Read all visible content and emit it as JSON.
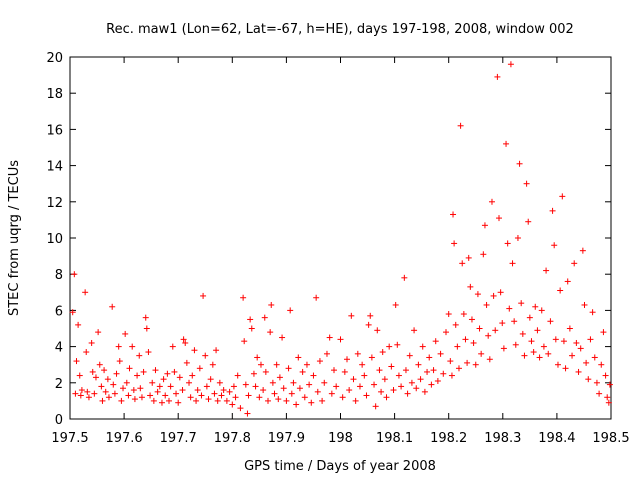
{
  "chart_data": {
    "type": "scatter",
    "title": "Rec. maw1 (Lon=62, Lat=-67, h=HE), days 197-198, 2008, window 002",
    "xlabel": "GPS time / Days of year 2008",
    "ylabel": "STEC from uqrg / TECUs",
    "xlim": [
      197.5,
      198.5
    ],
    "ylim": [
      0,
      20
    ],
    "xticks": [
      197.5,
      197.6,
      197.7,
      197.8,
      197.9,
      198.0,
      198.1,
      198.2,
      198.3,
      198.4,
      198.5
    ],
    "xtick_labels": [
      "197.5",
      "197.6",
      "197.7",
      "197.8",
      "197.9",
      "198",
      "198.1",
      "198.2",
      "198.3",
      "198.4",
      "198.5"
    ],
    "yticks": [
      0,
      2,
      4,
      6,
      8,
      10,
      12,
      14,
      16,
      18,
      20
    ],
    "ytick_labels": [
      "0",
      "2",
      "4",
      "6",
      "8",
      "10",
      "12",
      "14",
      "16",
      "18",
      "20"
    ],
    "grid": false,
    "marker": "+",
    "color": "#ff0000",
    "series": [
      {
        "name": "STEC",
        "points": [
          [
            197.505,
            5.9
          ],
          [
            197.508,
            8.0
          ],
          [
            197.51,
            1.4
          ],
          [
            197.512,
            3.2
          ],
          [
            197.515,
            5.2
          ],
          [
            197.518,
            2.4
          ],
          [
            197.52,
            1.3
          ],
          [
            197.522,
            1.6
          ],
          [
            197.528,
            7.0
          ],
          [
            197.53,
            3.7
          ],
          [
            197.532,
            1.5
          ],
          [
            197.535,
            1.2
          ],
          [
            197.54,
            4.2
          ],
          [
            197.542,
            2.6
          ],
          [
            197.545,
            1.4
          ],
          [
            197.548,
            2.3
          ],
          [
            197.552,
            4.8
          ],
          [
            197.555,
            3.0
          ],
          [
            197.558,
            1.8
          ],
          [
            197.56,
            1.0
          ],
          [
            197.563,
            2.7
          ],
          [
            197.566,
            1.5
          ],
          [
            197.57,
            2.2
          ],
          [
            197.572,
            1.2
          ],
          [
            197.578,
            6.2
          ],
          [
            197.58,
            1.9
          ],
          [
            197.583,
            1.4
          ],
          [
            197.586,
            2.5
          ],
          [
            197.59,
            4.0
          ],
          [
            197.592,
            3.2
          ],
          [
            197.595,
            1.0
          ],
          [
            197.598,
            1.7
          ],
          [
            197.602,
            4.7
          ],
          [
            197.605,
            2.0
          ],
          [
            197.608,
            1.3
          ],
          [
            197.61,
            2.8
          ],
          [
            197.615,
            4.0
          ],
          [
            197.618,
            1.6
          ],
          [
            197.62,
            1.1
          ],
          [
            197.624,
            2.4
          ],
          [
            197.628,
            3.5
          ],
          [
            197.63,
            1.7
          ],
          [
            197.633,
            1.2
          ],
          [
            197.636,
            2.6
          ],
          [
            197.64,
            5.6
          ],
          [
            197.642,
            5.0
          ],
          [
            197.645,
            3.7
          ],
          [
            197.648,
            1.3
          ],
          [
            197.652,
            2.0
          ],
          [
            197.655,
            1.0
          ],
          [
            197.658,
            2.7
          ],
          [
            197.662,
            1.5
          ],
          [
            197.666,
            1.8
          ],
          [
            197.67,
            0.9
          ],
          [
            197.673,
            2.2
          ],
          [
            197.676,
            1.3
          ],
          [
            197.68,
            2.5
          ],
          [
            197.683,
            1.0
          ],
          [
            197.686,
            1.8
          ],
          [
            197.69,
            4.0
          ],
          [
            197.693,
            2.6
          ],
          [
            197.696,
            1.4
          ],
          [
            197.7,
            0.9
          ],
          [
            197.703,
            2.3
          ],
          [
            197.708,
            1.6
          ],
          [
            197.71,
            4.4
          ],
          [
            197.713,
            4.2
          ],
          [
            197.716,
            3.1
          ],
          [
            197.72,
            2.0
          ],
          [
            197.723,
            1.2
          ],
          [
            197.726,
            2.4
          ],
          [
            197.73,
            3.8
          ],
          [
            197.733,
            1.0
          ],
          [
            197.736,
            1.6
          ],
          [
            197.74,
            2.8
          ],
          [
            197.743,
            1.3
          ],
          [
            197.746,
            6.8
          ],
          [
            197.75,
            3.5
          ],
          [
            197.753,
            1.8
          ],
          [
            197.756,
            1.1
          ],
          [
            197.76,
            2.2
          ],
          [
            197.764,
            3.0
          ],
          [
            197.767,
            1.4
          ],
          [
            197.77,
            3.8
          ],
          [
            197.773,
            1.0
          ],
          [
            197.777,
            2.0
          ],
          [
            197.78,
            1.3
          ],
          [
            197.784,
            1.6
          ],
          [
            197.79,
            1.0
          ],
          [
            197.795,
            1.5
          ],
          [
            197.8,
            0.8
          ],
          [
            197.803,
            1.8
          ],
          [
            197.806,
            1.2
          ],
          [
            197.81,
            2.4
          ],
          [
            197.815,
            0.6
          ],
          [
            197.82,
            6.7
          ],
          [
            197.822,
            4.3
          ],
          [
            197.825,
            1.9
          ],
          [
            197.828,
            0.3
          ],
          [
            197.83,
            1.3
          ],
          [
            197.833,
            5.5
          ],
          [
            197.836,
            5.0
          ],
          [
            197.84,
            2.5
          ],
          [
            197.843,
            1.8
          ],
          [
            197.846,
            3.4
          ],
          [
            197.85,
            1.2
          ],
          [
            197.853,
            3.0
          ],
          [
            197.857,
            1.6
          ],
          [
            197.86,
            5.6
          ],
          [
            197.862,
            2.6
          ],
          [
            197.866,
            1.0
          ],
          [
            197.87,
            4.8
          ],
          [
            197.872,
            6.3
          ],
          [
            197.875,
            2.0
          ],
          [
            197.878,
            1.4
          ],
          [
            197.882,
            3.0
          ],
          [
            197.885,
            1.1
          ],
          [
            197.888,
            2.3
          ],
          [
            197.892,
            4.5
          ],
          [
            197.895,
            1.7
          ],
          [
            197.9,
            1.0
          ],
          [
            197.904,
            2.8
          ],
          [
            197.907,
            6.0
          ],
          [
            197.91,
            1.4
          ],
          [
            197.913,
            2.0
          ],
          [
            197.918,
            0.8
          ],
          [
            197.922,
            3.4
          ],
          [
            197.925,
            1.7
          ],
          [
            197.93,
            2.6
          ],
          [
            197.934,
            1.2
          ],
          [
            197.938,
            3.0
          ],
          [
            197.942,
            1.9
          ],
          [
            197.946,
            0.9
          ],
          [
            197.95,
            2.4
          ],
          [
            197.955,
            6.7
          ],
          [
            197.958,
            1.5
          ],
          [
            197.962,
            3.2
          ],
          [
            197.966,
            1.0
          ],
          [
            197.97,
            2.0
          ],
          [
            197.975,
            3.6
          ],
          [
            197.98,
            4.5
          ],
          [
            197.984,
            1.4
          ],
          [
            197.988,
            2.7
          ],
          [
            197.992,
            1.8
          ],
          [
            198.0,
            4.4
          ],
          [
            198.004,
            1.2
          ],
          [
            198.008,
            2.6
          ],
          [
            198.012,
            3.3
          ],
          [
            198.016,
            1.6
          ],
          [
            198.02,
            5.7
          ],
          [
            198.024,
            2.2
          ],
          [
            198.028,
            1.0
          ],
          [
            198.032,
            3.6
          ],
          [
            198.036,
            1.8
          ],
          [
            198.04,
            3.0
          ],
          [
            198.044,
            2.4
          ],
          [
            198.048,
            1.3
          ],
          [
            198.052,
            5.2
          ],
          [
            198.055,
            5.7
          ],
          [
            198.058,
            3.4
          ],
          [
            198.062,
            1.9
          ],
          [
            198.065,
            0.7
          ],
          [
            198.068,
            4.9
          ],
          [
            198.072,
            2.7
          ],
          [
            198.075,
            1.5
          ],
          [
            198.078,
            3.7
          ],
          [
            198.082,
            2.2
          ],
          [
            198.085,
            1.2
          ],
          [
            198.09,
            4.0
          ],
          [
            198.094,
            2.9
          ],
          [
            198.098,
            1.6
          ],
          [
            198.102,
            6.3
          ],
          [
            198.105,
            4.1
          ],
          [
            198.108,
            2.4
          ],
          [
            198.112,
            1.8
          ],
          [
            198.118,
            7.8
          ],
          [
            198.121,
            2.7
          ],
          [
            198.124,
            1.4
          ],
          [
            198.128,
            3.5
          ],
          [
            198.132,
            2.0
          ],
          [
            198.136,
            4.9
          ],
          [
            198.14,
            1.7
          ],
          [
            198.144,
            3.0
          ],
          [
            198.148,
            2.2
          ],
          [
            198.152,
            4.0
          ],
          [
            198.156,
            1.5
          ],
          [
            198.16,
            2.6
          ],
          [
            198.164,
            3.4
          ],
          [
            198.168,
            1.9
          ],
          [
            198.172,
            2.7
          ],
          [
            198.176,
            4.3
          ],
          [
            198.18,
            2.1
          ],
          [
            198.185,
            3.6
          ],
          [
            198.19,
            2.5
          ],
          [
            198.195,
            4.8
          ],
          [
            198.2,
            5.8
          ],
          [
            198.203,
            3.2
          ],
          [
            198.206,
            2.4
          ],
          [
            198.208,
            11.3
          ],
          [
            198.21,
            9.7
          ],
          [
            198.213,
            5.2
          ],
          [
            198.216,
            4.0
          ],
          [
            198.219,
            2.8
          ],
          [
            198.222,
            16.2
          ],
          [
            198.225,
            8.6
          ],
          [
            198.228,
            5.8
          ],
          [
            198.231,
            4.4
          ],
          [
            198.234,
            3.1
          ],
          [
            198.237,
            8.9
          ],
          [
            198.24,
            7.3
          ],
          [
            198.243,
            5.5
          ],
          [
            198.246,
            4.2
          ],
          [
            198.25,
            3.0
          ],
          [
            198.254,
            6.9
          ],
          [
            198.257,
            5.0
          ],
          [
            198.26,
            3.6
          ],
          [
            198.264,
            9.1
          ],
          [
            198.267,
            10.7
          ],
          [
            198.27,
            6.3
          ],
          [
            198.273,
            4.6
          ],
          [
            198.276,
            3.3
          ],
          [
            198.28,
            12.0
          ],
          [
            198.283,
            6.8
          ],
          [
            198.286,
            4.9
          ],
          [
            198.29,
            18.9
          ],
          [
            198.293,
            11.1
          ],
          [
            198.296,
            7.0
          ],
          [
            198.299,
            5.3
          ],
          [
            198.302,
            3.9
          ],
          [
            198.306,
            15.2
          ],
          [
            198.309,
            9.7
          ],
          [
            198.312,
            6.1
          ],
          [
            198.315,
            19.6
          ],
          [
            198.318,
            8.6
          ],
          [
            198.321,
            5.4
          ],
          [
            198.324,
            4.1
          ],
          [
            198.328,
            10.0
          ],
          [
            198.331,
            14.1
          ],
          [
            198.334,
            6.4
          ],
          [
            198.337,
            4.7
          ],
          [
            198.34,
            3.5
          ],
          [
            198.344,
            13.0
          ],
          [
            198.347,
            10.9
          ],
          [
            198.35,
            5.6
          ],
          [
            198.353,
            4.3
          ],
          [
            198.357,
            3.7
          ],
          [
            198.36,
            6.2
          ],
          [
            198.364,
            4.9
          ],
          [
            198.368,
            3.4
          ],
          [
            198.372,
            6.0
          ],
          [
            198.376,
            4.0
          ],
          [
            198.38,
            8.2
          ],
          [
            198.384,
            3.6
          ],
          [
            198.388,
            5.4
          ],
          [
            198.392,
            11.5
          ],
          [
            198.395,
            9.6
          ],
          [
            198.398,
            4.4
          ],
          [
            198.402,
            3.0
          ],
          [
            198.406,
            7.1
          ],
          [
            198.41,
            12.3
          ],
          [
            198.413,
            4.3
          ],
          [
            198.416,
            2.8
          ],
          [
            198.42,
            7.6
          ],
          [
            198.424,
            5.0
          ],
          [
            198.428,
            3.5
          ],
          [
            198.432,
            8.6
          ],
          [
            198.436,
            4.2
          ],
          [
            198.44,
            2.6
          ],
          [
            198.444,
            3.9
          ],
          [
            198.448,
            9.3
          ],
          [
            198.451,
            6.3
          ],
          [
            198.454,
            3.1
          ],
          [
            198.458,
            2.2
          ],
          [
            198.462,
            4.4
          ],
          [
            198.466,
            5.9
          ],
          [
            198.47,
            3.4
          ],
          [
            198.474,
            2.0
          ],
          [
            198.478,
            1.4
          ],
          [
            198.482,
            3.0
          ],
          [
            198.486,
            4.8
          ],
          [
            198.49,
            2.4
          ],
          [
            198.493,
            1.2
          ],
          [
            198.496,
            0.9
          ],
          [
            198.498,
            1.9
          ]
        ]
      }
    ]
  }
}
